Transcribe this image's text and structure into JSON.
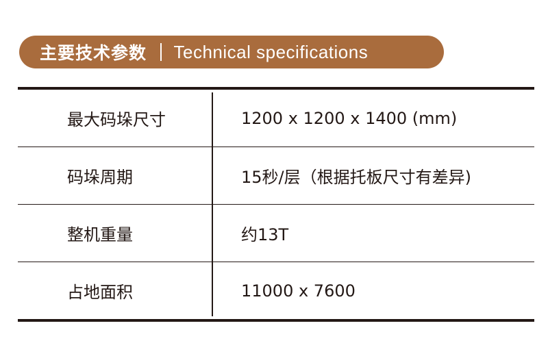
{
  "colors": {
    "accent": "#a96c3d",
    "text": "#231815"
  },
  "header": {
    "title_zh": "主要技术参数",
    "title_en": "Technical specifications"
  },
  "specs": [
    {
      "label": "最大码垛尺寸",
      "value": "1200 x 1200 x 1400 (mm)"
    },
    {
      "label": "码垛周期",
      "value": "15秒/层（根据托板尺寸有差异)"
    },
    {
      "label": "整机重量",
      "value": "约13T"
    },
    {
      "label": "占地面积",
      "value": "11000 x 7600"
    }
  ]
}
